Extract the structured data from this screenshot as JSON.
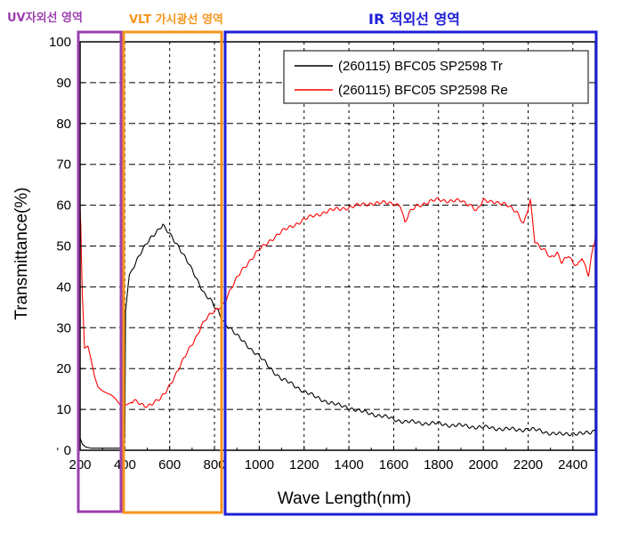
{
  "regions": {
    "uv": {
      "label": "UV자외선 영역",
      "color": "#9b3fae"
    },
    "vlt": {
      "label": "VLT 가시광선 영역",
      "color": "#f7941d"
    },
    "ir": {
      "label": "IR 적외선 영역",
      "color": "#1f1fd6"
    }
  },
  "chart_data": {
    "type": "line",
    "xlabel": "Wave Length(nm)",
    "ylabel": "Transmittance(%)",
    "xlim": [
      200,
      2500
    ],
    "ylim": [
      0,
      100
    ],
    "xticks": [
      200,
      400,
      600,
      800,
      1000,
      1200,
      1400,
      1600,
      1800,
      2000,
      2200,
      2400
    ],
    "yticks": [
      0,
      10,
      20,
      30,
      40,
      50,
      60,
      70,
      80,
      90,
      100
    ],
    "grid": true,
    "legend_position": "top-right",
    "series": [
      {
        "name": "(260115) BFC05 SP2598 Tr",
        "color": "#000000",
        "x": [
          200,
          210,
          225,
          250,
          300,
          350,
          380,
          395,
          400,
          403,
          410,
          420,
          440,
          460,
          480,
          500,
          520,
          540,
          560,
          570,
          580,
          590,
          600,
          620,
          640,
          660,
          680,
          700,
          720,
          740,
          760,
          780,
          800,
          815,
          825,
          835,
          850,
          870,
          900,
          950,
          1000,
          1050,
          1100,
          1150,
          1200,
          1250,
          1300,
          1350,
          1400,
          1450,
          1500,
          1550,
          1600,
          1650,
          1700,
          1750,
          1800,
          1850,
          1900,
          1950,
          2000,
          2050,
          2100,
          2150,
          2200,
          2250,
          2300,
          2350,
          2400,
          2450,
          2480,
          2500
        ],
        "y": [
          3,
          1.5,
          0.8,
          0.5,
          0.5,
          0.5,
          0.5,
          1,
          3,
          34,
          38,
          43,
          45,
          47,
          49,
          51,
          52.5,
          53.5,
          54.5,
          55,
          54,
          53.5,
          53,
          51.5,
          50,
          48,
          46,
          44,
          42,
          40,
          38,
          37,
          35,
          34,
          33,
          32,
          31,
          30,
          28,
          25.5,
          23,
          20,
          17.5,
          16,
          14.5,
          13,
          12,
          11,
          10.5,
          9.5,
          9,
          8.3,
          7.6,
          7,
          6.8,
          6.6,
          6.5,
          6.2,
          6,
          5.8,
          5.6,
          5.4,
          5.2,
          5,
          5.2,
          4.8,
          4.2,
          3.8,
          4.2,
          4,
          4.3,
          5
        ]
      },
      {
        "name": "(260115) BFC05 SP2598 Re",
        "color": "#ff0000",
        "x": [
          200,
          203,
          210,
          220,
          235,
          250,
          265,
          280,
          300,
          320,
          340,
          360,
          380,
          395,
          400,
          420,
          440,
          460,
          480,
          500,
          520,
          540,
          560,
          580,
          600,
          620,
          640,
          660,
          680,
          700,
          720,
          740,
          760,
          780,
          800,
          820,
          840,
          860,
          880,
          900,
          920,
          950,
          1000,
          1050,
          1100,
          1150,
          1200,
          1250,
          1300,
          1350,
          1400,
          1450,
          1500,
          1550,
          1600,
          1630,
          1650,
          1670,
          1700,
          1750,
          1800,
          1850,
          1900,
          1950,
          1970,
          2000,
          2050,
          2100,
          2150,
          2180,
          2200,
          2210,
          2230,
          2250,
          2280,
          2300,
          2330,
          2350,
          2380,
          2400,
          2420,
          2440,
          2450,
          2470,
          2490,
          2500
        ],
        "y": [
          59,
          55,
          38,
          25,
          25.5,
          22,
          18,
          15.5,
          14.5,
          14,
          13.5,
          12.5,
          11,
          10.5,
          11,
          11.5,
          12,
          11.5,
          11,
          11,
          11.5,
          12,
          12.5,
          14,
          16,
          18,
          20,
          22,
          24,
          26,
          28,
          30.5,
          32,
          33,
          34,
          35,
          36,
          38,
          40,
          42,
          44,
          46,
          49,
          51.5,
          53.5,
          55,
          56.5,
          57.5,
          58.5,
          59,
          59.5,
          60,
          60.5,
          60.5,
          60.5,
          60,
          55.5,
          58,
          60,
          60.5,
          61.5,
          61,
          61,
          60,
          58.5,
          61,
          61,
          60,
          58.5,
          55.5,
          59,
          61,
          51,
          50,
          49,
          47,
          48,
          46,
          48,
          46,
          45,
          47,
          45.5,
          43,
          50,
          52
        ]
      }
    ]
  }
}
